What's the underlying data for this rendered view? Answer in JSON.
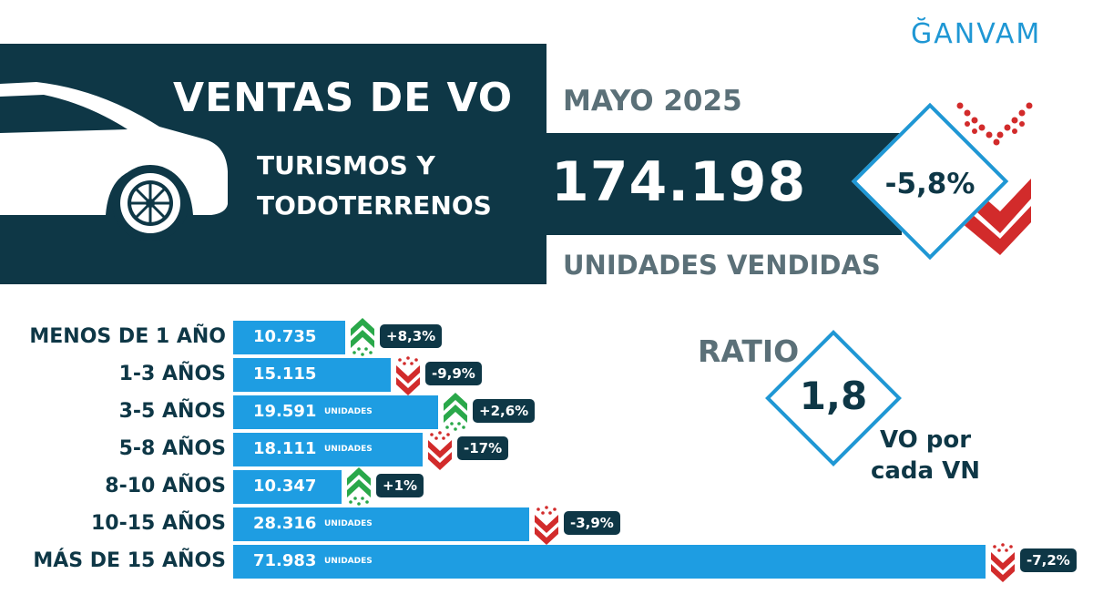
{
  "brand": "ĞANVAM",
  "header": {
    "title": "VENTAS DE VO",
    "period": "MAYO 2025",
    "subtitle_line1": "TURISMOS Y",
    "subtitle_line2": "TODOTERRENOS",
    "total": "174.198",
    "total_label": "UNIDADES VENDIDAS",
    "change": "-5,8%"
  },
  "ratio": {
    "title": "RATIO",
    "value": "1,8",
    "desc_line1": "VO por",
    "desc_line2": "cada VN"
  },
  "colors": {
    "dark": "#0e3746",
    "bar": "#1e9de2",
    "up": "#2aa84a",
    "down": "#d22b2b",
    "accent": "#1f97d4"
  },
  "chart_data": {
    "type": "bar",
    "orientation": "horizontal",
    "categories": [
      "MENOS DE 1 AÑO",
      "1-3 AÑOS",
      "3-5 AÑOS",
      "5-8 AÑOS",
      "8-10 AÑOS",
      "10-15 AÑOS",
      "MÁS DE 15 AÑOS"
    ],
    "values": [
      10735,
      15115,
      19591,
      18111,
      10347,
      28316,
      71983
    ],
    "value_labels": [
      "10.735",
      "15.115",
      "19.591",
      "18.111",
      "10.347",
      "28.316",
      "71.983"
    ],
    "unit_labels": [
      "",
      "",
      "UNIDADES",
      "UNIDADES",
      "",
      "UNIDADES",
      "UNIDADES"
    ],
    "changes": [
      "+8,3%",
      "-9,9%",
      "+2,6%",
      "-17%",
      "+1%",
      "-3,9%",
      "-7,2%"
    ],
    "change_directions": [
      "up",
      "down",
      "up",
      "down",
      "up",
      "down",
      "down"
    ],
    "xlim": [
      0,
      71983
    ]
  }
}
